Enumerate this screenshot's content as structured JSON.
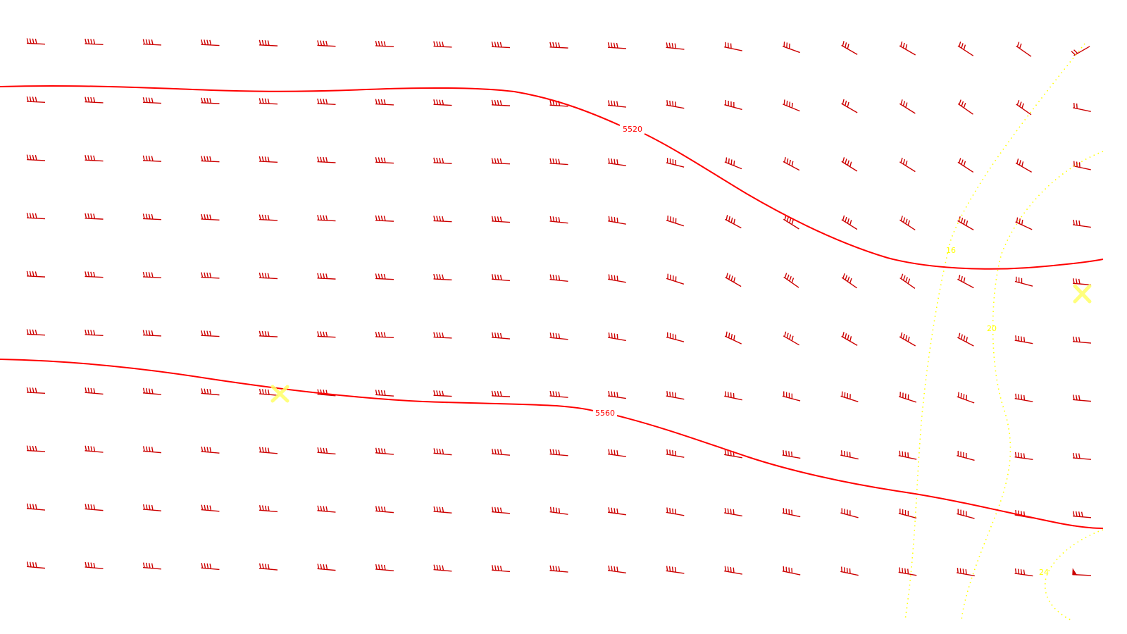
{
  "colors": {
    "contour": "#ff0000",
    "barb": "#cc0000",
    "isotach": "#ffff00",
    "marker": "#ffff66",
    "background": "#ffffff"
  },
  "contours": [
    {
      "label": "5520"
    },
    {
      "label": "5560"
    }
  ],
  "isotachs": [
    {
      "label": "16"
    },
    {
      "label": "20"
    },
    {
      "label": "24"
    }
  ],
  "markers": [
    {
      "symbol": "x"
    },
    {
      "symbol": "x"
    }
  ],
  "wind_barbs": {
    "rows": 10,
    "cols": 19,
    "speed_kt": [
      [
        40,
        40,
        40,
        40,
        40,
        40,
        40,
        40,
        40,
        40,
        40,
        40,
        30,
        30,
        30,
        30,
        30,
        20,
        20
      ],
      [
        40,
        40,
        40,
        40,
        40,
        40,
        40,
        40,
        40,
        40,
        40,
        40,
        40,
        40,
        30,
        30,
        30,
        30,
        20
      ],
      [
        40,
        40,
        40,
        40,
        40,
        40,
        40,
        40,
        40,
        40,
        40,
        40,
        40,
        40,
        40,
        30,
        30,
        30,
        30
      ],
      [
        40,
        40,
        40,
        40,
        40,
        40,
        40,
        40,
        40,
        40,
        40,
        40,
        40,
        40,
        40,
        40,
        40,
        30,
        30
      ],
      [
        40,
        40,
        40,
        40,
        40,
        40,
        40,
        40,
        40,
        40,
        40,
        40,
        40,
        40,
        40,
        40,
        30,
        30,
        30
      ],
      [
        40,
        40,
        40,
        40,
        40,
        40,
        40,
        40,
        40,
        40,
        40,
        40,
        40,
        40,
        40,
        40,
        40,
        40,
        30
      ],
      [
        40,
        40,
        40,
        40,
        40,
        40,
        40,
        40,
        40,
        40,
        40,
        40,
        40,
        40,
        40,
        40,
        40,
        40,
        30
      ],
      [
        40,
        40,
        40,
        40,
        40,
        40,
        40,
        40,
        40,
        40,
        40,
        40,
        40,
        40,
        40,
        40,
        40,
        40,
        30
      ],
      [
        40,
        40,
        40,
        40,
        40,
        40,
        40,
        40,
        40,
        40,
        40,
        40,
        40,
        40,
        40,
        40,
        40,
        40,
        40
      ],
      [
        40,
        40,
        40,
        40,
        40,
        40,
        40,
        40,
        40,
        40,
        40,
        40,
        40,
        40,
        40,
        40,
        40,
        40,
        50
      ]
    ],
    "tilt_deg": [
      [
        3,
        3,
        3,
        3,
        3,
        3,
        3,
        3,
        3,
        3,
        4,
        6,
        12,
        20,
        30,
        30,
        33,
        35,
        -30
      ],
      [
        3,
        3,
        3,
        3,
        3,
        3,
        3,
        3,
        3,
        4,
        6,
        10,
        15,
        22,
        30,
        32,
        35,
        35,
        12
      ],
      [
        3,
        3,
        3,
        3,
        3,
        3,
        3,
        3,
        3,
        4,
        8,
        14,
        22,
        28,
        32,
        32,
        33,
        30,
        12
      ],
      [
        3,
        3,
        3,
        3,
        3,
        3,
        3,
        3,
        4,
        6,
        10,
        18,
        28,
        32,
        32,
        33,
        30,
        25,
        8
      ],
      [
        3,
        3,
        3,
        3,
        3,
        3,
        3,
        3,
        5,
        6,
        10,
        18,
        30,
        35,
        35,
        35,
        28,
        15,
        5
      ],
      [
        3,
        3,
        3,
        3,
        3,
        3,
        3,
        3,
        5,
        6,
        10,
        15,
        25,
        30,
        30,
        30,
        28,
        10,
        5
      ],
      [
        3,
        5,
        5,
        5,
        5,
        5,
        4,
        3,
        3,
        5,
        8,
        10,
        12,
        15,
        18,
        18,
        20,
        10,
        5
      ],
      [
        3,
        5,
        5,
        5,
        5,
        5,
        5,
        5,
        5,
        5,
        8,
        10,
        10,
        10,
        12,
        12,
        15,
        8,
        5
      ],
      [
        5,
        5,
        5,
        5,
        5,
        5,
        5,
        5,
        5,
        8,
        8,
        10,
        10,
        12,
        15,
        15,
        15,
        10,
        5
      ],
      [
        5,
        5,
        5,
        5,
        5,
        5,
        5,
        5,
        5,
        5,
        8,
        8,
        10,
        12,
        12,
        10,
        10,
        8,
        3
      ]
    ]
  }
}
